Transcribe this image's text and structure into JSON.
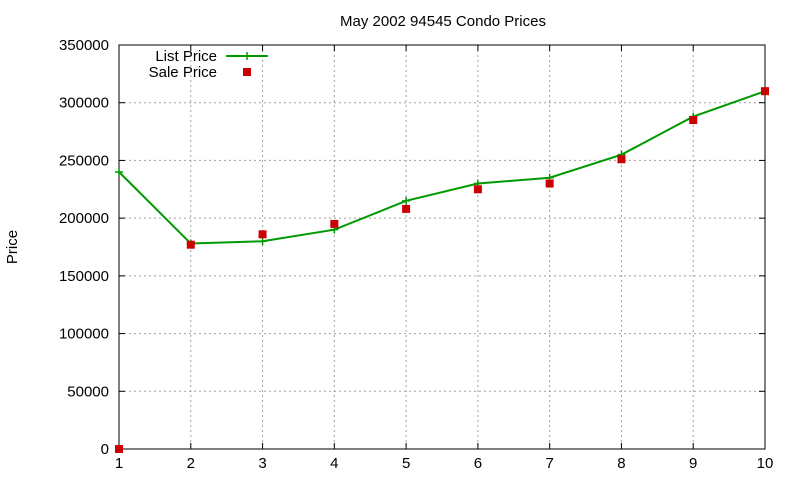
{
  "chart_data": {
    "type": "line",
    "title": "May 2002 94545 Condo Prices",
    "xlabel": "",
    "ylabel": "Price",
    "x": [
      1,
      2,
      3,
      4,
      5,
      6,
      7,
      8,
      9,
      10
    ],
    "xlim": [
      1,
      10
    ],
    "ylim": [
      0,
      350000
    ],
    "xticks": [
      1,
      2,
      3,
      4,
      5,
      6,
      7,
      8,
      9,
      10
    ],
    "yticks": [
      0,
      50000,
      100000,
      150000,
      200000,
      250000,
      300000,
      350000
    ],
    "grid": true,
    "legend_position": "top-left",
    "series": [
      {
        "name": "List Price",
        "style": "line-with-plus-markers",
        "color": "#009900",
        "values": [
          240000,
          178000,
          180000,
          190000,
          215000,
          230000,
          235000,
          255000,
          288000,
          310000
        ]
      },
      {
        "name": "Sale Price",
        "style": "square-markers",
        "color": "#cc0000",
        "values": [
          0,
          177000,
          186000,
          195000,
          208000,
          225000,
          230000,
          251000,
          285000,
          310000
        ]
      }
    ]
  }
}
